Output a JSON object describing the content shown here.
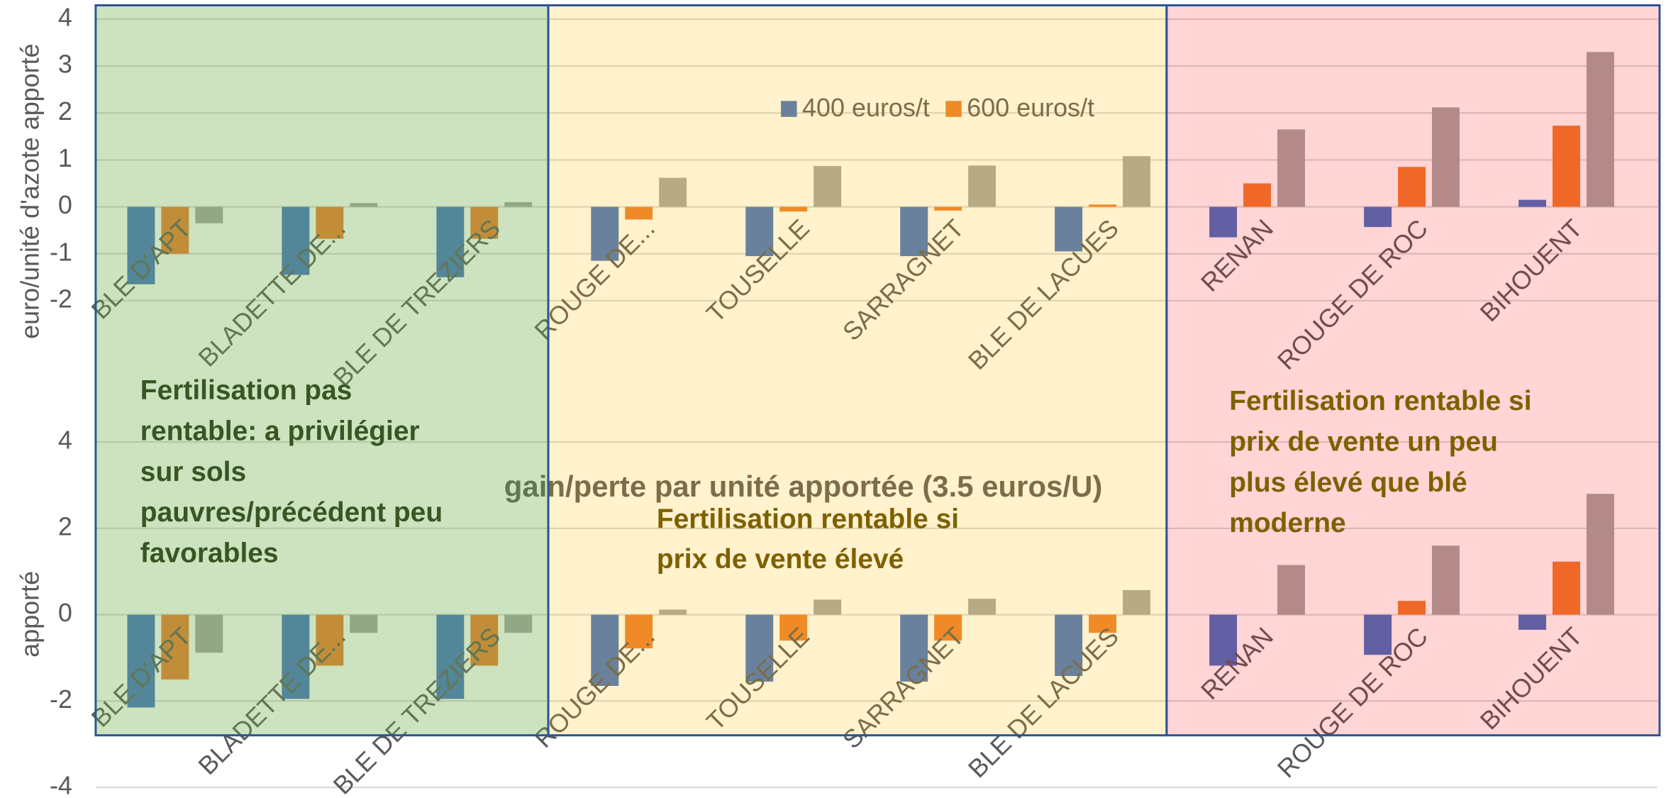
{
  "chart_data": [
    {
      "type": "bar",
      "y_label": "euro/unité d'azote apporté",
      "categories": [
        "BLE D'APT",
        "BLADETTE DE...",
        "BLE DE TREZIERS",
        "ROUGE DE...",
        "TOUSELLE",
        "SARRAGNET",
        "BLE DE LACUES",
        "RENAN",
        "ROUGE DE ROC",
        "BIHOUENT"
      ],
      "series": [
        {
          "name": "400 euros/t",
          "color": "#4472c4",
          "values": [
            -1.65,
            -1.45,
            -1.5,
            -1.15,
            -1.05,
            -1.05,
            -0.95,
            -0.65,
            -0.43,
            0.15
          ]
        },
        {
          "name": "600 euros/t",
          "color": "#ed7d31",
          "values": [
            -1.0,
            -0.68,
            -0.68,
            -0.27,
            -0.1,
            -0.08,
            0.05,
            0.5,
            0.85,
            1.73
          ]
        },
        {
          "color": "#a5a5a5",
          "values": [
            -0.35,
            0.08,
            0.1,
            0.62,
            0.87,
            0.88,
            1.08,
            1.65,
            2.12,
            3.3
          ]
        }
      ],
      "ylim": [
        -2,
        4
      ],
      "yticks": [
        -2,
        -1,
        0,
        1,
        2,
        3,
        4
      ],
      "grid": true,
      "legend": "top"
    },
    {
      "type": "bar",
      "title": "gain/perte par unité apportée (3.5 euros/U)",
      "y_label": "apporté",
      "categories": [
        "BLE D'APT",
        "BLADETTE DE...",
        "BLE DE TREZIERS",
        "ROUGE DE...",
        "TOUSELLE",
        "SARRAGNET",
        "BLE DE LACUES",
        "RENAN",
        "ROUGE DE ROC",
        "BIHOUENT"
      ],
      "series": [
        {
          "color": "#4472c4",
          "values": [
            -2.15,
            -1.95,
            -1.95,
            -1.65,
            -1.55,
            -1.55,
            -1.42,
            -1.18,
            -0.93,
            -0.35
          ]
        },
        {
          "color": "#ed7d31",
          "values": [
            -1.5,
            -1.18,
            -1.18,
            -0.78,
            -0.6,
            -0.6,
            -0.42,
            0,
            0.32,
            1.23
          ]
        },
        {
          "color": "#a5a5a5",
          "values": [
            -0.88,
            -0.42,
            -0.42,
            0.12,
            0.35,
            0.37,
            0.57,
            1.15,
            1.6,
            2.8
          ]
        }
      ],
      "ylim": [
        -4,
        4
      ],
      "yticks": [
        -4,
        -2,
        0,
        2,
        4
      ],
      "grid": true,
      "annotations": [
        {
          "lines": [
            "Fertilisation pas",
            "rentable: a privilégier",
            "sur sols",
            "pauvres/précédent peu",
            "favorables"
          ],
          "color": "#375623"
        },
        {
          "lines": [
            "Fertilisation rentable si",
            "prix de vente élevé"
          ],
          "color": "#7f6000"
        },
        {
          "lines": [
            "Fertilisation rentable si",
            "prix de vente un peu",
            "plus élevé que blé",
            "moderne"
          ],
          "color": "#7f6000"
        }
      ]
    }
  ]
}
